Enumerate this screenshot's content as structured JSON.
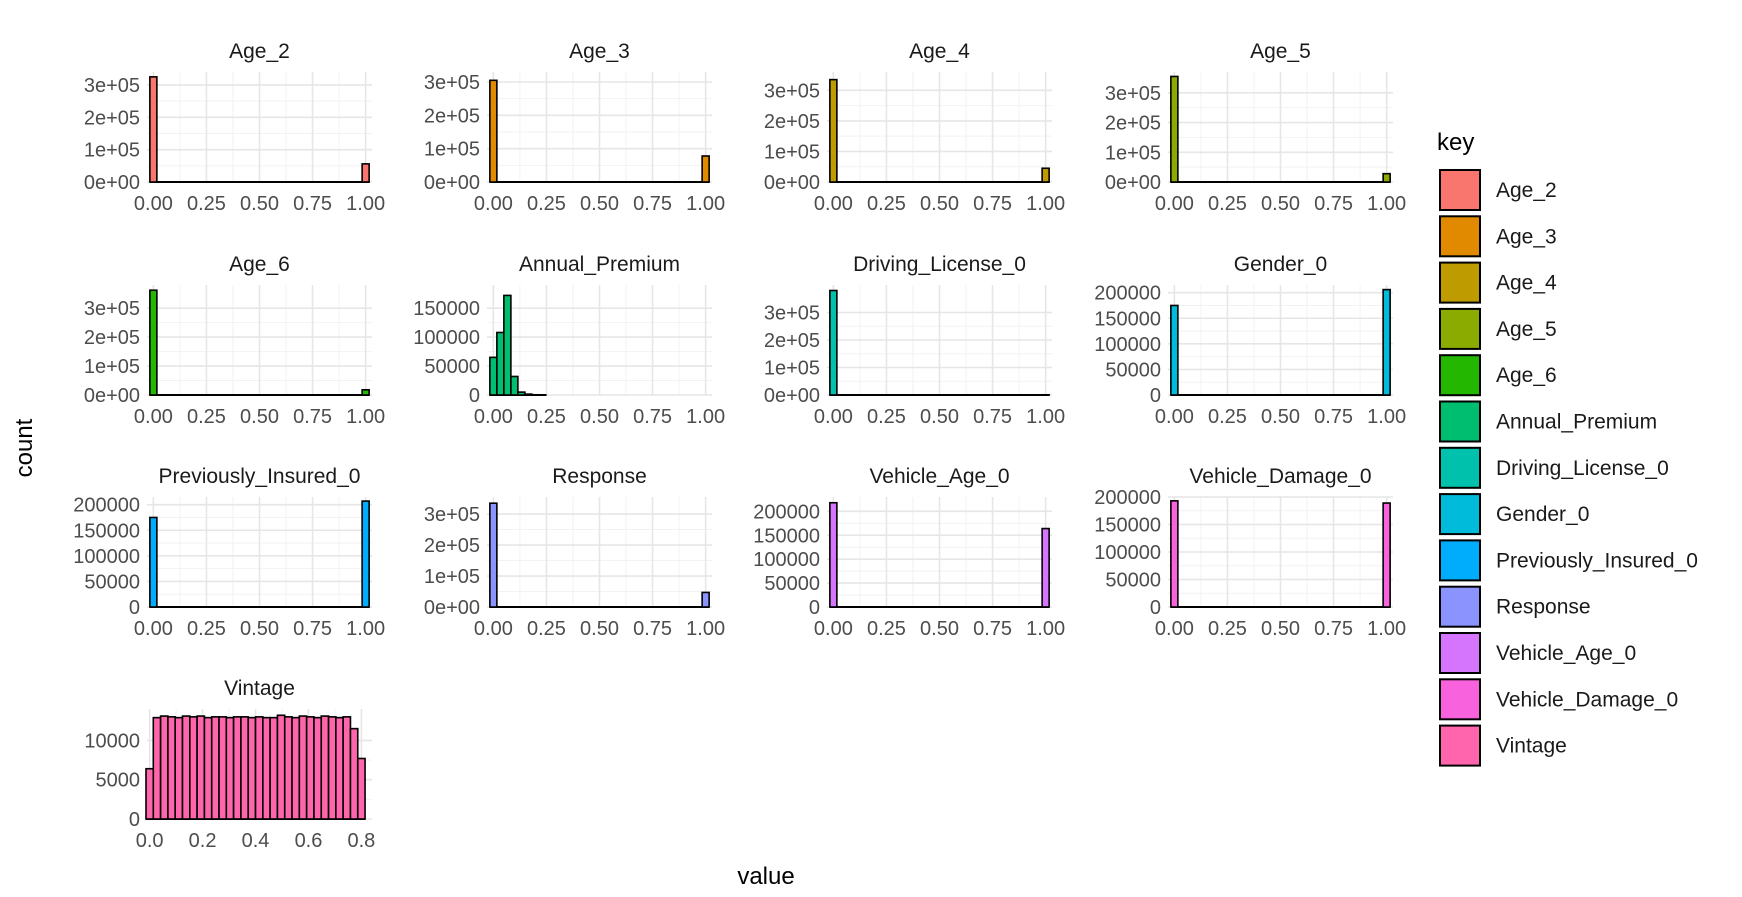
{
  "chart_data": {
    "type": "bar",
    "xlabel": "value",
    "ylabel": "count",
    "legend": {
      "title": "key",
      "position": "right",
      "entries": [
        {
          "label": "Age_2",
          "color": "#F8766D"
        },
        {
          "label": "Age_3",
          "color": "#E18A00"
        },
        {
          "label": "Age_4",
          "color": "#BE9C00"
        },
        {
          "label": "Age_5",
          "color": "#8CAB00"
        },
        {
          "label": "Age_6",
          "color": "#24B700"
        },
        {
          "label": "Annual_Premium",
          "color": "#00BE70"
        },
        {
          "label": "Driving_License_0",
          "color": "#00C1AB"
        },
        {
          "label": "Gender_0",
          "color": "#00BBDA"
        },
        {
          "label": "Previously_Insured_0",
          "color": "#00ACFC"
        },
        {
          "label": "Response",
          "color": "#8B93FF"
        },
        {
          "label": "Vehicle_Age_0",
          "color": "#D575FE"
        },
        {
          "label": "Vehicle_Damage_0",
          "color": "#F962DD"
        },
        {
          "label": "Vintage",
          "color": "#FF65AC"
        }
      ]
    },
    "grid": true,
    "panels": [
      {
        "title": "Age_2",
        "color": "#F8766D",
        "xlim": [
          -0.03,
          1.03
        ],
        "xticks": [
          "0.00",
          "0.25",
          "0.50",
          "0.75",
          "1.00"
        ],
        "xtick_values": [
          0,
          0.25,
          0.5,
          0.75,
          1
        ],
        "ylim": [
          0,
          340000
        ],
        "yticks": [
          "0e+00",
          "1e+05",
          "2e+05",
          "3e+05"
        ],
        "ytick_values": [
          0,
          100000,
          200000,
          300000
        ],
        "bar_width": 0.033,
        "bars": [
          {
            "x": 0.0,
            "count": 325000
          },
          {
            "x": 1.0,
            "count": 56000
          }
        ]
      },
      {
        "title": "Age_3",
        "color": "#E18A00",
        "xlim": [
          -0.03,
          1.03
        ],
        "xticks": [
          "0.00",
          "0.25",
          "0.50",
          "0.75",
          "1.00"
        ],
        "xtick_values": [
          0,
          0.25,
          0.5,
          0.75,
          1
        ],
        "ylim": [
          0,
          330000
        ],
        "yticks": [
          "0e+00",
          "1e+05",
          "2e+05",
          "3e+05"
        ],
        "ytick_values": [
          0,
          100000,
          200000,
          300000
        ],
        "bar_width": 0.033,
        "bars": [
          {
            "x": 0.0,
            "count": 305000
          },
          {
            "x": 1.0,
            "count": 78000
          }
        ]
      },
      {
        "title": "Age_4",
        "color": "#BE9C00",
        "xlim": [
          -0.03,
          1.03
        ],
        "xticks": [
          "0.00",
          "0.25",
          "0.50",
          "0.75",
          "1.00"
        ],
        "xtick_values": [
          0,
          0.25,
          0.5,
          0.75,
          1
        ],
        "ylim": [
          0,
          360000
        ],
        "yticks": [
          "0e+00",
          "1e+05",
          "2e+05",
          "3e+05"
        ],
        "ytick_values": [
          0,
          100000,
          200000,
          300000
        ],
        "bar_width": 0.033,
        "bars": [
          {
            "x": 0.0,
            "count": 335000
          },
          {
            "x": 1.0,
            "count": 45000
          }
        ]
      },
      {
        "title": "Age_5",
        "color": "#8CAB00",
        "xlim": [
          -0.03,
          1.03
        ],
        "xticks": [
          "0.00",
          "0.25",
          "0.50",
          "0.75",
          "1.00"
        ],
        "xtick_values": [
          0,
          0.25,
          0.5,
          0.75,
          1
        ],
        "ylim": [
          0,
          370000
        ],
        "yticks": [
          "0e+00",
          "1e+05",
          "2e+05",
          "3e+05"
        ],
        "ytick_values": [
          0,
          100000,
          200000,
          300000
        ],
        "bar_width": 0.033,
        "bars": [
          {
            "x": 0.0,
            "count": 355000
          },
          {
            "x": 1.0,
            "count": 28000
          }
        ]
      },
      {
        "title": "Age_6",
        "color": "#24B700",
        "xlim": [
          -0.03,
          1.03
        ],
        "xticks": [
          "0.00",
          "0.25",
          "0.50",
          "0.75",
          "1.00"
        ],
        "xtick_values": [
          0,
          0.25,
          0.5,
          0.75,
          1
        ],
        "ylim": [
          0,
          380000
        ],
        "yticks": [
          "0e+00",
          "1e+05",
          "2e+05",
          "3e+05"
        ],
        "ytick_values": [
          0,
          100000,
          200000,
          300000
        ],
        "bar_width": 0.033,
        "bars": [
          {
            "x": 0.0,
            "count": 362000
          },
          {
            "x": 1.0,
            "count": 18000
          }
        ]
      },
      {
        "title": "Annual_Premium",
        "color": "#00BE70",
        "xlim": [
          -0.03,
          1.03
        ],
        "xticks": [
          "0.00",
          "0.25",
          "0.50",
          "0.75",
          "1.00"
        ],
        "xtick_values": [
          0,
          0.25,
          0.5,
          0.75,
          1
        ],
        "ylim": [
          0,
          190000
        ],
        "yticks": [
          "0",
          "50000",
          "100000",
          "150000"
        ],
        "ytick_values": [
          0,
          50000,
          100000,
          150000
        ],
        "bar_width": 0.033,
        "bars": [
          {
            "x": 0.0,
            "count": 65000
          },
          {
            "x": 0.033,
            "count": 108000
          },
          {
            "x": 0.066,
            "count": 172000
          },
          {
            "x": 0.099,
            "count": 32000
          },
          {
            "x": 0.132,
            "count": 5000
          },
          {
            "x": 0.165,
            "count": 1500
          },
          {
            "x": 0.198,
            "count": 400
          },
          {
            "x": 0.231,
            "count": 150
          }
        ]
      },
      {
        "title": "Driving_License_0",
        "color": "#00C1AB",
        "xlim": [
          -0.03,
          1.03
        ],
        "xticks": [
          "0.00",
          "0.25",
          "0.50",
          "0.75",
          "1.00"
        ],
        "xtick_values": [
          0,
          0.25,
          0.5,
          0.75,
          1
        ],
        "ylim": [
          0,
          400000
        ],
        "yticks": [
          "0e+00",
          "1e+05",
          "2e+05",
          "3e+05"
        ],
        "ytick_values": [
          0,
          100000,
          200000,
          300000
        ],
        "bar_width": 0.033,
        "bars": [
          {
            "x": 0.0,
            "count": 380000
          },
          {
            "x": 1.0,
            "count": 800
          }
        ]
      },
      {
        "title": "Gender_0",
        "color": "#00BBDA",
        "xlim": [
          -0.03,
          1.03
        ],
        "xticks": [
          "0.00",
          "0.25",
          "0.50",
          "0.75",
          "1.00"
        ],
        "xtick_values": [
          0,
          0.25,
          0.5,
          0.75,
          1
        ],
        "ylim": [
          0,
          215000
        ],
        "yticks": [
          "0",
          "50000",
          "100000",
          "150000",
          "200000"
        ],
        "ytick_values": [
          0,
          50000,
          100000,
          150000,
          200000
        ],
        "bar_width": 0.033,
        "bars": [
          {
            "x": 0.0,
            "count": 175000
          },
          {
            "x": 1.0,
            "count": 206000
          }
        ]
      },
      {
        "title": "Previously_Insured_0",
        "color": "#00ACFC",
        "xlim": [
          -0.03,
          1.03
        ],
        "xticks": [
          "0.00",
          "0.25",
          "0.50",
          "0.75",
          "1.00"
        ],
        "xtick_values": [
          0,
          0.25,
          0.5,
          0.75,
          1
        ],
        "ylim": [
          0,
          215000
        ],
        "yticks": [
          "0",
          "50000",
          "100000",
          "150000",
          "200000"
        ],
        "ytick_values": [
          0,
          50000,
          100000,
          150000,
          200000
        ],
        "bar_width": 0.033,
        "bars": [
          {
            "x": 0.0,
            "count": 175000
          },
          {
            "x": 1.0,
            "count": 207000
          }
        ]
      },
      {
        "title": "Response",
        "color": "#8B93FF",
        "xlim": [
          -0.03,
          1.03
        ],
        "xticks": [
          "0.00",
          "0.25",
          "0.50",
          "0.75",
          "1.00"
        ],
        "xtick_values": [
          0,
          0.25,
          0.5,
          0.75,
          1
        ],
        "ylim": [
          0,
          355000
        ],
        "yticks": [
          "0e+00",
          "1e+05",
          "2e+05",
          "3e+05"
        ],
        "ytick_values": [
          0,
          100000,
          200000,
          300000
        ],
        "bar_width": 0.033,
        "bars": [
          {
            "x": 0.0,
            "count": 335000
          },
          {
            "x": 1.0,
            "count": 47000
          }
        ]
      },
      {
        "title": "Vehicle_Age_0",
        "color": "#D575FE",
        "xlim": [
          -0.03,
          1.03
        ],
        "xticks": [
          "0.00",
          "0.25",
          "0.50",
          "0.75",
          "1.00"
        ],
        "xtick_values": [
          0,
          0.25,
          0.5,
          0.75,
          1
        ],
        "ylim": [
          0,
          230000
        ],
        "yticks": [
          "0",
          "50000",
          "100000",
          "150000",
          "200000"
        ],
        "ytick_values": [
          0,
          50000,
          100000,
          150000,
          200000
        ],
        "bar_width": 0.033,
        "bars": [
          {
            "x": 0.0,
            "count": 218000
          },
          {
            "x": 1.0,
            "count": 164000
          }
        ]
      },
      {
        "title": "Vehicle_Damage_0",
        "color": "#F962DD",
        "xlim": [
          -0.03,
          1.03
        ],
        "xticks": [
          "0.00",
          "0.25",
          "0.50",
          "0.75",
          "1.00"
        ],
        "xtick_values": [
          0,
          0.25,
          0.5,
          0.75,
          1
        ],
        "ylim": [
          0,
          200000
        ],
        "yticks": [
          "0",
          "50000",
          "100000",
          "150000",
          "200000"
        ],
        "ytick_values": [
          0,
          50000,
          100000,
          150000,
          200000
        ],
        "bar_width": 0.033,
        "bars": [
          {
            "x": 0.0,
            "count": 193000
          },
          {
            "x": 1.0,
            "count": 189000
          }
        ]
      },
      {
        "title": "Vintage",
        "color": "#FF65AC",
        "xlim": [
          -0.01,
          0.84
        ],
        "xticks": [
          "0.0",
          "0.2",
          "0.4",
          "0.6",
          "0.8"
        ],
        "xtick_values": [
          0,
          0.2,
          0.4,
          0.6,
          0.8
        ],
        "ylim": [
          0,
          14000
        ],
        "yticks": [
          "0",
          "5000",
          "10000"
        ],
        "ytick_values": [
          0,
          5000,
          10000
        ],
        "bar_width": 0.0276,
        "bars": [
          {
            "x": 0.0,
            "count": 6400
          },
          {
            "x": 0.0276,
            "count": 12900
          },
          {
            "x": 0.0552,
            "count": 13100
          },
          {
            "x": 0.0828,
            "count": 13000
          },
          {
            "x": 0.1103,
            "count": 12900
          },
          {
            "x": 0.1379,
            "count": 13100
          },
          {
            "x": 0.1655,
            "count": 13000
          },
          {
            "x": 0.1931,
            "count": 13100
          },
          {
            "x": 0.2207,
            "count": 12900
          },
          {
            "x": 0.2483,
            "count": 13000
          },
          {
            "x": 0.2759,
            "count": 13000
          },
          {
            "x": 0.3034,
            "count": 12900
          },
          {
            "x": 0.331,
            "count": 13000
          },
          {
            "x": 0.3586,
            "count": 13000
          },
          {
            "x": 0.3862,
            "count": 12900
          },
          {
            "x": 0.4138,
            "count": 13000
          },
          {
            "x": 0.4414,
            "count": 12900
          },
          {
            "x": 0.469,
            "count": 12900
          },
          {
            "x": 0.4966,
            "count": 13200
          },
          {
            "x": 0.5241,
            "count": 13000
          },
          {
            "x": 0.5517,
            "count": 12900
          },
          {
            "x": 0.5793,
            "count": 13100
          },
          {
            "x": 0.6069,
            "count": 13000
          },
          {
            "x": 0.6345,
            "count": 12900
          },
          {
            "x": 0.6621,
            "count": 13100
          },
          {
            "x": 0.6897,
            "count": 13000
          },
          {
            "x": 0.7172,
            "count": 12900
          },
          {
            "x": 0.7448,
            "count": 13000
          },
          {
            "x": 0.7724,
            "count": 11500
          },
          {
            "x": 0.8,
            "count": 7700
          }
        ]
      }
    ]
  }
}
